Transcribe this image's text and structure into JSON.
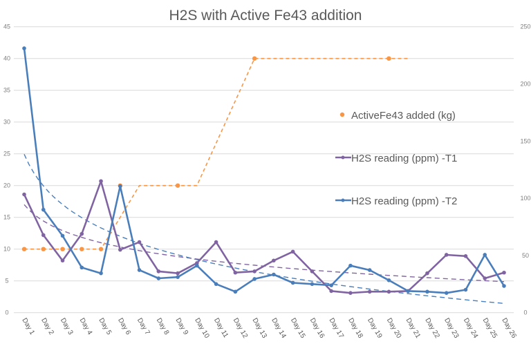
{
  "chart_data": {
    "type": "line",
    "title": "H2S with Active Fe43 addition",
    "categories": [
      "Day 1",
      "Day 2",
      "Day 3",
      "Day 4",
      "Day 5",
      "Day 6",
      "Day 7",
      "Day 8",
      "Day 9",
      "Day 10",
      "Day 11",
      "Day 12",
      "Day 13",
      "Day 14",
      "Day 15",
      "Day 16",
      "Day 17",
      "Day 18",
      "Day 19",
      "Day 20",
      "Day 21",
      "Day 22",
      "Day 23",
      "Day 24",
      "Day 25",
      "Day 26"
    ],
    "y_left": {
      "range": [
        0,
        45
      ],
      "ticks": [
        0,
        5,
        10,
        15,
        20,
        25,
        30,
        35,
        40,
        45
      ]
    },
    "y_right": {
      "range": [
        0,
        250
      ],
      "ticks": [
        0,
        50,
        100,
        150,
        200,
        250
      ]
    },
    "grid": true,
    "legend_position": "right",
    "series": [
      {
        "name": "ActiveFe43 added (kg)",
        "color": "#f79646",
        "style": "dashed line with markers",
        "line_values": [
          10,
          10,
          10,
          10,
          10,
          null,
          20,
          20,
          20,
          20,
          null,
          null,
          40,
          40,
          40,
          40,
          40,
          40,
          40,
          40,
          40,
          null,
          null,
          null,
          null,
          null
        ],
        "marker_values": [
          10,
          10,
          10,
          10,
          10,
          20,
          null,
          null,
          20,
          null,
          null,
          null,
          40,
          null,
          null,
          null,
          null,
          null,
          null,
          40,
          null,
          null,
          null,
          null,
          null,
          null
        ]
      },
      {
        "name": "H2S reading (ppm) -T1",
        "color": "#8064a2",
        "values": [
          18.6,
          12.2,
          8.2,
          12.4,
          20.7,
          9.9,
          11.1,
          6.5,
          6.2,
          7.8,
          11.1,
          6.3,
          6.5,
          8.2,
          9.6,
          6.5,
          3.4,
          3.1,
          3.3,
          3.3,
          3.4,
          6.2,
          9.1,
          8.9,
          5.4,
          6.3
        ],
        "trendline": "logarithmic"
      },
      {
        "name": "H2S reading (ppm) -T2",
        "color": "#4a7ebb",
        "values": [
          41.6,
          16.2,
          12.1,
          7.1,
          6.2,
          19.9,
          6.7,
          5.4,
          5.6,
          7.4,
          4.5,
          3.3,
          5.3,
          6.0,
          4.7,
          4.5,
          4.3,
          7.4,
          6.7,
          5.1,
          3.4,
          3.3,
          3.1,
          3.6,
          9.1,
          4.2
        ],
        "trendline": "logarithmic"
      }
    ]
  }
}
